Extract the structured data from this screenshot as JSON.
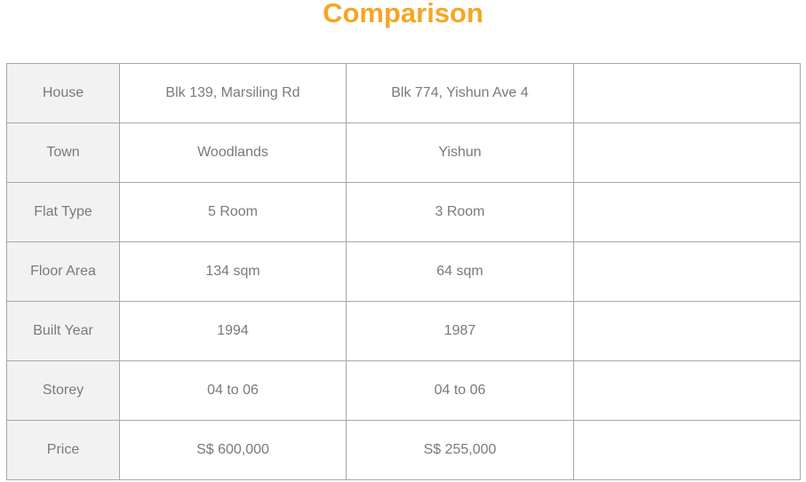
{
  "page": {
    "title": "Comparison",
    "colors": {
      "title": "#f5a623",
      "house_text": "#5cb85c",
      "price_text": "#f5a623",
      "label_bg": "#f2f2f2",
      "body_text": "#7a7a7a",
      "border": "#a8a8a8"
    }
  },
  "table": {
    "rows": [
      {
        "label": "House",
        "values": [
          "Blk 139, Marsiling Rd",
          "Blk 774, Yishun Ave 4",
          ""
        ]
      },
      {
        "label": "Town",
        "values": [
          "Woodlands",
          "Yishun",
          ""
        ]
      },
      {
        "label": "Flat Type",
        "values": [
          "5 Room",
          "3 Room",
          ""
        ]
      },
      {
        "label": "Floor Area",
        "values": [
          "134 sqm",
          "64 sqm",
          ""
        ]
      },
      {
        "label": "Built Year",
        "values": [
          "1994",
          "1987",
          ""
        ]
      },
      {
        "label": "Storey",
        "values": [
          "04 to 06",
          "04 to 06",
          ""
        ]
      },
      {
        "label": "Price",
        "values": [
          "S$ 600,000",
          "S$ 255,000",
          ""
        ]
      }
    ]
  }
}
